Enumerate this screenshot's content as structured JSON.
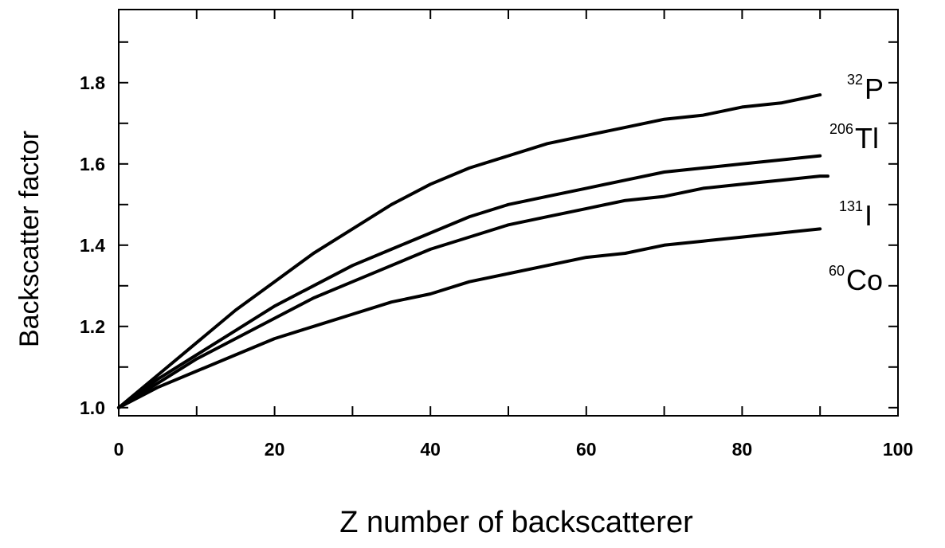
{
  "chart_data": {
    "type": "line",
    "title": "",
    "xlabel": "Z number of backscatterer",
    "ylabel": "Backscatter factor",
    "xlim": [
      0,
      100
    ],
    "ylim": [
      0.98,
      1.98
    ],
    "x_ticks": [
      0,
      20,
      40,
      60,
      80,
      100
    ],
    "y_ticks": [
      1.0,
      1.2,
      1.4,
      1.6,
      1.8
    ],
    "x_tick_labels": [
      "0",
      "20",
      "40",
      "60",
      "80",
      "100"
    ],
    "y_tick_labels": [
      "1.0",
      "1.2",
      "1.4",
      "1.6",
      "1.8"
    ],
    "x_minor_ticks": [
      10,
      30,
      50,
      70,
      90
    ],
    "y_minor_ticks": [
      1.1,
      1.3,
      1.5,
      1.7,
      1.9
    ],
    "grid": false,
    "series": [
      {
        "name": "P",
        "mass_number": "32",
        "x": [
          0,
          5,
          10,
          15,
          20,
          25,
          30,
          35,
          40,
          45,
          50,
          55,
          60,
          65,
          70,
          75,
          80,
          85,
          90
        ],
        "y": [
          1.0,
          1.08,
          1.16,
          1.24,
          1.31,
          1.38,
          1.44,
          1.5,
          1.55,
          1.59,
          1.62,
          1.65,
          1.67,
          1.69,
          1.71,
          1.72,
          1.74,
          1.75,
          1.77
        ]
      },
      {
        "name": "Tl",
        "mass_number": "206",
        "x": [
          0,
          5,
          10,
          15,
          20,
          25,
          30,
          35,
          40,
          45,
          50,
          55,
          60,
          65,
          70,
          75,
          80,
          85,
          90
        ],
        "y": [
          1.0,
          1.07,
          1.13,
          1.19,
          1.25,
          1.3,
          1.35,
          1.39,
          1.43,
          1.47,
          1.5,
          1.52,
          1.54,
          1.56,
          1.58,
          1.59,
          1.6,
          1.61,
          1.62
        ]
      },
      {
        "name": "I",
        "mass_number": "131",
        "x": [
          0,
          5,
          10,
          15,
          20,
          25,
          30,
          35,
          40,
          45,
          50,
          55,
          60,
          65,
          70,
          75,
          80,
          85,
          90,
          91
        ],
        "y": [
          1.0,
          1.06,
          1.12,
          1.17,
          1.22,
          1.27,
          1.31,
          1.35,
          1.39,
          1.42,
          1.45,
          1.47,
          1.49,
          1.51,
          1.52,
          1.54,
          1.55,
          1.56,
          1.57,
          1.57
        ]
      },
      {
        "name": "Co",
        "mass_number": "60",
        "x": [
          0,
          5,
          10,
          15,
          20,
          25,
          30,
          35,
          40,
          45,
          50,
          55,
          60,
          65,
          70,
          75,
          80,
          85,
          90
        ],
        "y": [
          1.0,
          1.05,
          1.09,
          1.13,
          1.17,
          1.2,
          1.23,
          1.26,
          1.28,
          1.31,
          1.33,
          1.35,
          1.37,
          1.38,
          1.4,
          1.41,
          1.42,
          1.43,
          1.44
        ]
      }
    ]
  }
}
